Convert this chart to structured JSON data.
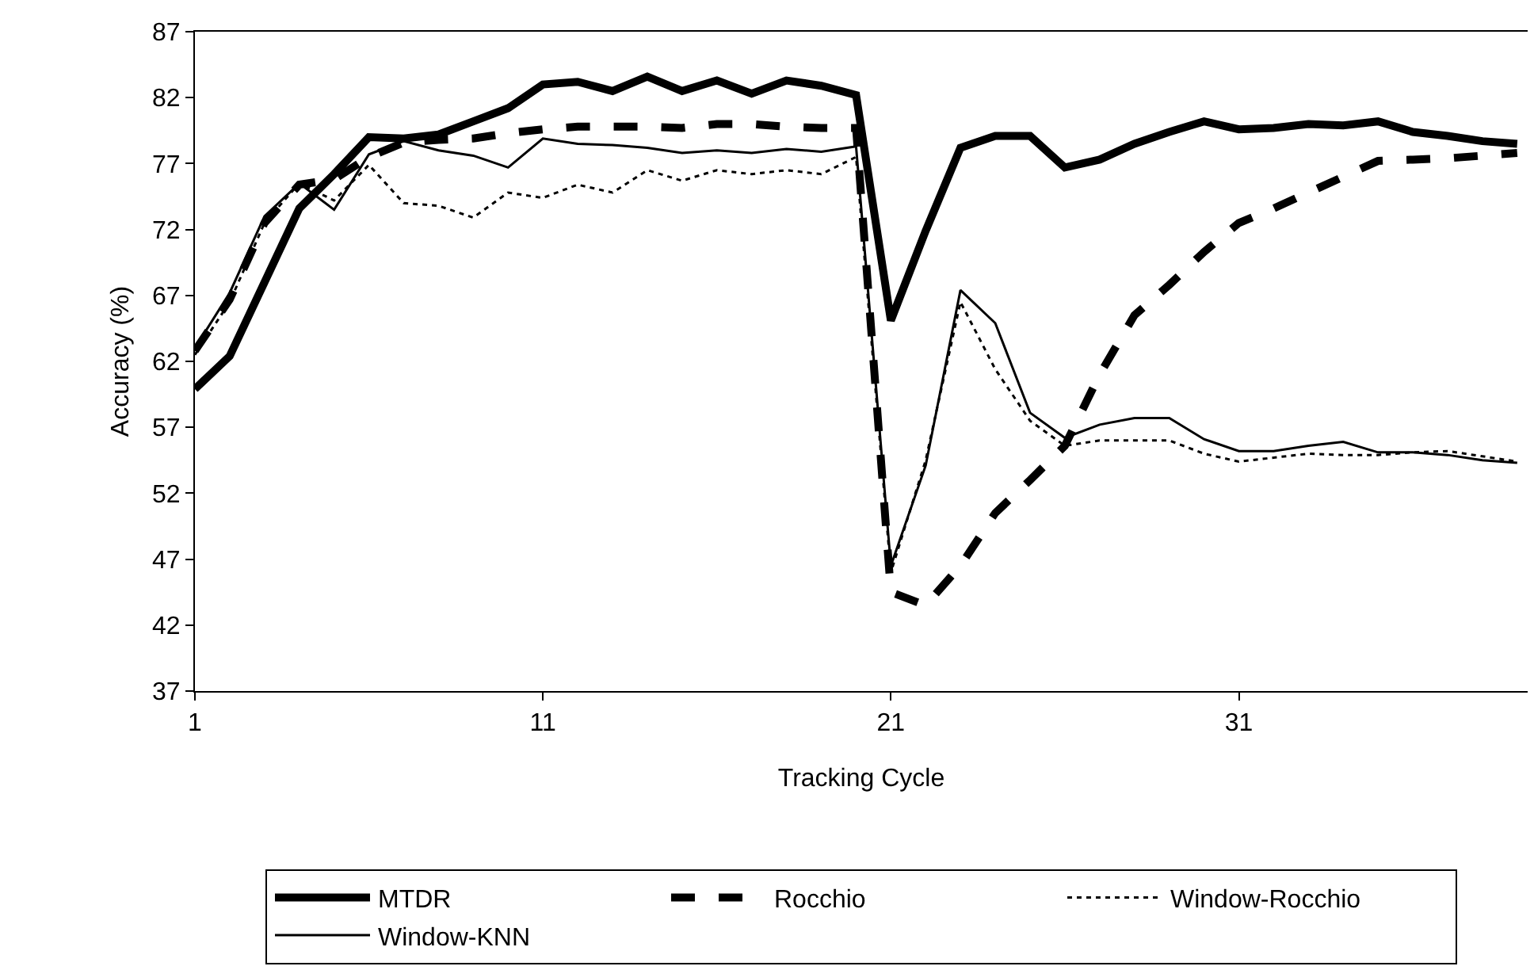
{
  "chart_data": {
    "type": "line",
    "xlabel": "Tracking Cycle",
    "ylabel": "Accuracy (%)",
    "x": [
      1,
      2,
      3,
      4,
      5,
      6,
      7,
      8,
      9,
      10,
      11,
      12,
      13,
      14,
      15,
      16,
      17,
      18,
      19,
      20,
      21,
      22,
      23,
      24,
      25,
      26,
      27,
      28,
      29,
      30,
      31,
      32,
      33,
      34,
      35,
      36,
      37,
      38,
      39
    ],
    "xlim": [
      1,
      39.3
    ],
    "xticks": [
      1,
      11,
      21,
      31
    ],
    "ylim": [
      37,
      87
    ],
    "yticks": [
      37,
      42,
      47,
      52,
      57,
      62,
      67,
      72,
      77,
      82,
      87
    ],
    "grid": false,
    "legend": "bottom",
    "marker": "none",
    "series": [
      {
        "name": "MTDR",
        "color": "#000000",
        "line_style": "solid",
        "values": [
          59.9,
          62.4,
          68.0,
          73.6,
          76.2,
          79.0,
          78.9,
          79.2,
          80.2,
          81.2,
          83.0,
          83.2,
          82.5,
          83.6,
          82.5,
          83.3,
          82.3,
          83.3,
          82.9,
          82.2,
          65.1,
          71.9,
          78.2,
          79.1,
          79.1,
          76.7,
          77.3,
          78.5,
          79.4,
          80.2,
          79.6,
          79.7,
          80.0,
          79.9,
          80.2,
          79.4,
          79.1,
          78.7,
          78.5
        ]
      },
      {
        "name": "Rocchio",
        "color": "#000000",
        "line_style": "dashed",
        "values": [
          62.8,
          66.7,
          72.5,
          75.4,
          75.8,
          77.5,
          78.6,
          78.8,
          78.9,
          79.3,
          79.6,
          79.8,
          79.8,
          79.8,
          79.7,
          80.0,
          80.0,
          79.8,
          79.7,
          79.7,
          44.5,
          43.5,
          46.5,
          50.5,
          53.0,
          55.6,
          61.0,
          65.5,
          67.8,
          70.3,
          72.5,
          73.6,
          74.8,
          76.0,
          77.2,
          77.3,
          77.4,
          77.6,
          77.8
        ]
      },
      {
        "name": "Window-Rocchio",
        "color": "#000000",
        "line_style": "dotted",
        "values": [
          62.5,
          66.5,
          72.5,
          75.5,
          74.2,
          76.9,
          74.0,
          73.8,
          72.9,
          74.8,
          74.4,
          75.4,
          74.8,
          76.5,
          75.7,
          76.5,
          76.2,
          76.5,
          76.2,
          77.5,
          46.0,
          54.5,
          66.5,
          61.4,
          57.5,
          55.6,
          56.0,
          56.0,
          56.0,
          55.0,
          54.4,
          54.7,
          55.0,
          54.9,
          54.9,
          55.1,
          55.2,
          54.8,
          54.4
        ]
      },
      {
        "name": "Window-KNN",
        "color": "#000000",
        "line_style": "solid",
        "values": [
          63.0,
          67.2,
          73.0,
          75.5,
          73.5,
          77.7,
          78.7,
          78.0,
          77.6,
          76.7,
          78.9,
          78.5,
          78.4,
          78.2,
          77.8,
          78.0,
          77.8,
          78.1,
          77.9,
          78.3,
          46.5,
          54.1,
          67.4,
          64.9,
          58.1,
          56.2,
          57.2,
          57.7,
          57.7,
          56.1,
          55.2,
          55.2,
          55.6,
          55.9,
          55.1,
          55.1,
          54.9,
          54.5,
          54.3
        ]
      }
    ]
  }
}
